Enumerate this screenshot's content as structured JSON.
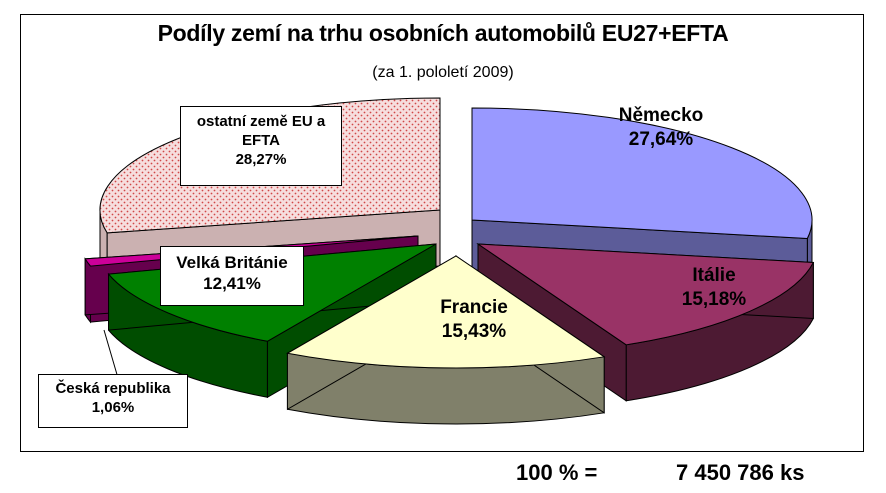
{
  "chart_data": {
    "type": "pie",
    "title": "Podíly zemí na trhu osobních automobilů EU27+EFTA",
    "subtitle": "(za 1. pololetí 2009)",
    "categories": [
      "Německo",
      "Itálie",
      "Francie",
      "Velká Británie",
      "Česká republika",
      "ostatní země EU a EFTA"
    ],
    "values": [
      27.64,
      15.18,
      15.43,
      12.41,
      1.06,
      28.27
    ],
    "value_labels": [
      "27,64%",
      "15,18%",
      "15,43%",
      "12,41%",
      "1,06%",
      "28,27%"
    ],
    "colors": [
      "#9999ff",
      "#993366",
      "#ffffcc",
      "#008000",
      "#cc0099",
      "#f6dede"
    ],
    "side_colors": [
      "#5c5c99",
      "#4d1a33",
      "#80806a",
      "#004d00",
      "#66004d",
      "#cbb1b1"
    ],
    "legend": "none"
  },
  "footer": {
    "total_label": "100 % =",
    "total_value": "7 450 786 ks"
  }
}
